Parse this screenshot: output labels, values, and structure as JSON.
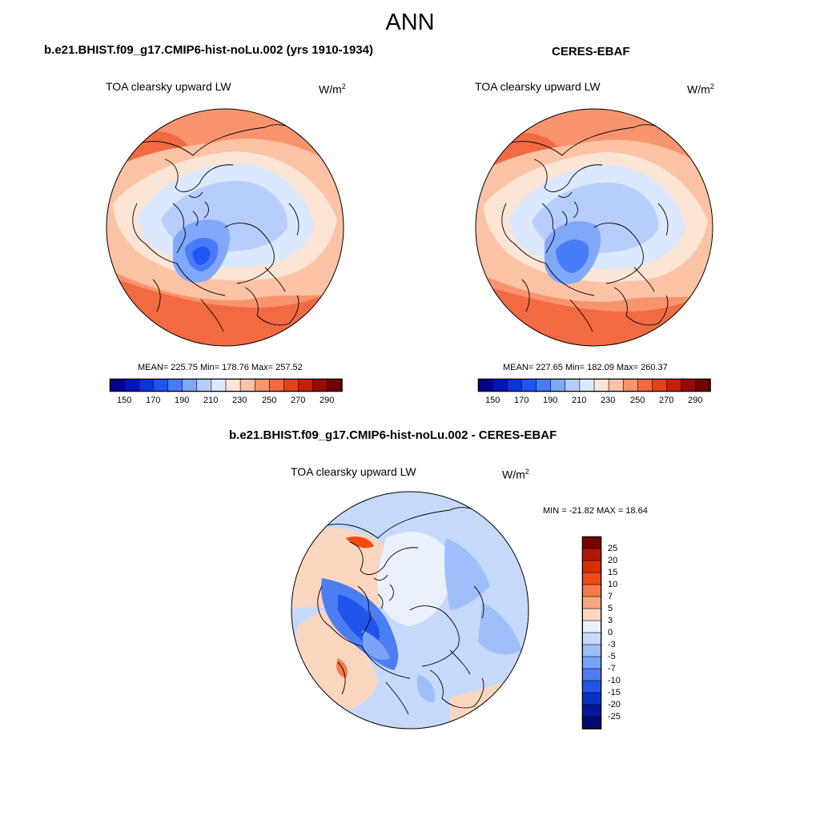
{
  "figure": {
    "season": "ANN"
  },
  "variable_label": "TOA clearsky upward LW",
  "units": {
    "base": "W/m",
    "exponent": "2"
  },
  "panels": [
    {
      "title": "b.e21.BHIST.f09_g17.CMIP6-hist-noLu.002 (yrs 1910-1934)",
      "stats": "MEAN= 225.75  Min= 178.76  Max= 257.52",
      "colorbar_ticks": [
        "150",
        "170",
        "190",
        "210",
        "230",
        "250",
        "270",
        "290"
      ]
    },
    {
      "title": "CERES-EBAF",
      "stats": "MEAN= 227.65  Min= 182.09  Max= 260.37",
      "colorbar_ticks": [
        "150",
        "170",
        "190",
        "210",
        "230",
        "250",
        "270",
        "290"
      ]
    }
  ],
  "diff_panel": {
    "title": "b.e21.BHIST.f09_g17.CMIP6-hist-noLu.002 - CERES-EBAF",
    "stats": "MIN = -21.82 MAX =  18.64",
    "colorbar_labels": [
      "25",
      "20",
      "15",
      "10",
      "7",
      "5",
      "3",
      "0",
      "-3",
      "-5",
      "-7",
      "-10",
      "-15",
      "-20",
      "-25"
    ]
  },
  "colors": {
    "abs_scale": [
      "#00008f",
      "#0015b8",
      "#0a32e0",
      "#1f55f5",
      "#4a7bf7",
      "#82a8f9",
      "#b7cdfb",
      "#dce8fd",
      "#fde5d6",
      "#fbc2a5",
      "#f8946d",
      "#f26a42",
      "#e6401d",
      "#c5200a",
      "#9a0a00",
      "#700000"
    ],
    "diff_scale": [
      "#7a0000",
      "#b01800",
      "#d73000",
      "#f24a14",
      "#f47a4a",
      "#f7a882",
      "#fbd6bf",
      "#eaf1fd",
      "#c6d9fb",
      "#9ebff9",
      "#7aa2f6",
      "#4d7df2",
      "#2054ea",
      "#0a30c8",
      "#001a9a",
      "#000a70"
    ]
  }
}
